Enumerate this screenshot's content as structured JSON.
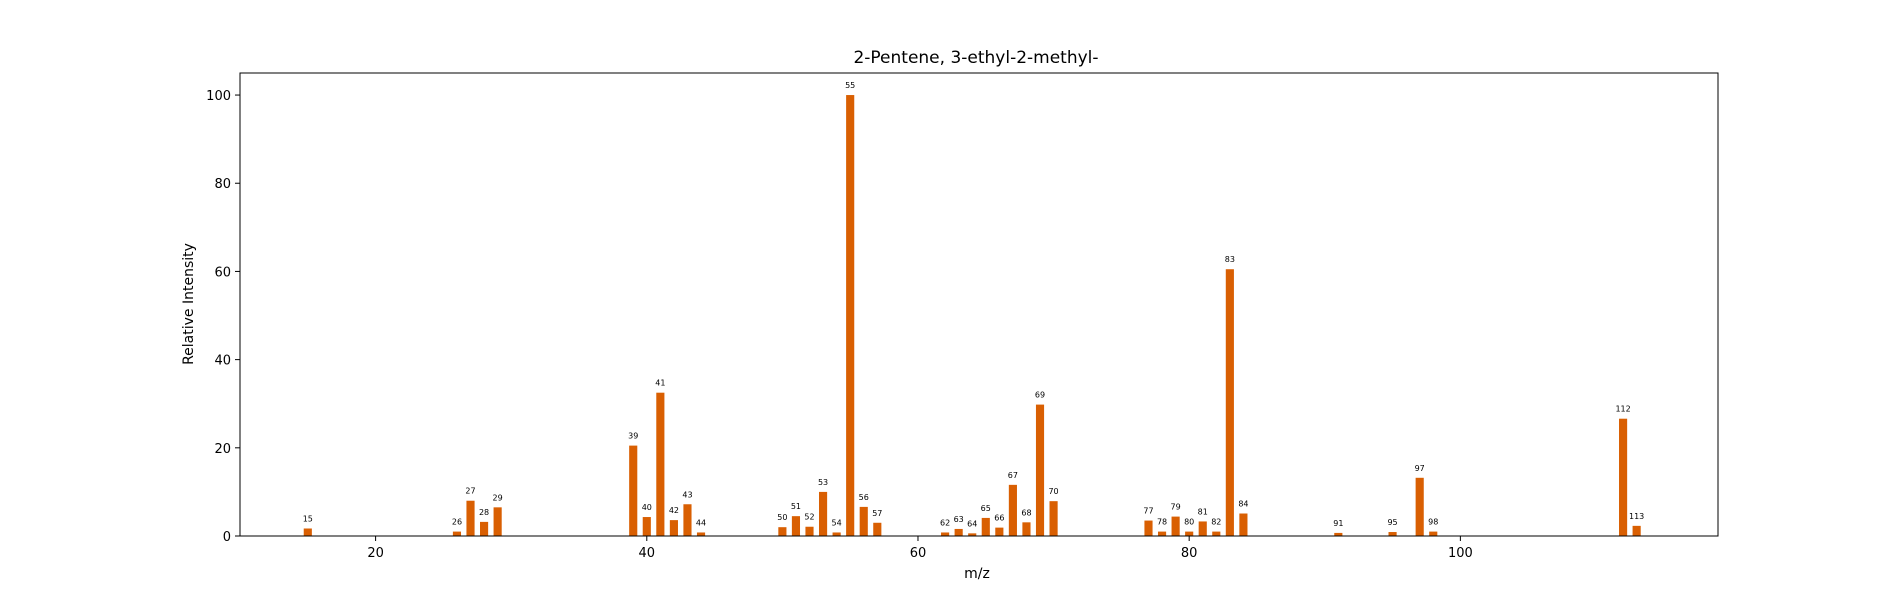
{
  "chart_data": {
    "type": "bar",
    "title": "2-Pentene, 3-ethyl-2-methyl-",
    "xlabel": "m/z",
    "ylabel": "Relative Intensity",
    "xlim": [
      10,
      119
    ],
    "ylim": [
      0,
      105
    ],
    "xticks": [
      20,
      40,
      60,
      80,
      100
    ],
    "yticks": [
      0,
      20,
      40,
      60,
      80,
      100
    ],
    "grid": false,
    "bar_color": "#d95f02",
    "x": [
      15,
      26,
      27,
      28,
      29,
      39,
      40,
      41,
      42,
      43,
      44,
      50,
      51,
      52,
      53,
      54,
      55,
      56,
      57,
      62,
      63,
      64,
      65,
      66,
      67,
      68,
      69,
      70,
      77,
      78,
      79,
      80,
      81,
      82,
      83,
      84,
      91,
      95,
      97,
      98,
      112,
      113
    ],
    "values": [
      1.7,
      1.0,
      8.0,
      3.2,
      6.5,
      20.5,
      4.3,
      32.5,
      3.6,
      7.2,
      0.8,
      2.0,
      4.5,
      2.1,
      10.0,
      0.8,
      100.0,
      6.6,
      3.0,
      0.8,
      1.6,
      0.6,
      4.1,
      1.9,
      11.6,
      3.1,
      29.8,
      7.9,
      3.5,
      1.0,
      4.4,
      1.0,
      3.3,
      1.0,
      60.5,
      5.1,
      0.7,
      0.9,
      13.2,
      1.0,
      26.6,
      2.3
    ],
    "labels": [
      "15",
      "26",
      "27",
      "28",
      "29",
      "39",
      "40",
      "41",
      "42",
      "43",
      "44",
      "50",
      "51",
      "52",
      "53",
      "54",
      "55",
      "56",
      "57",
      "62",
      "63",
      "64",
      "65",
      "66",
      "67",
      "68",
      "69",
      "70",
      "77",
      "78",
      "79",
      "80",
      "81",
      "82",
      "83",
      "84",
      "91",
      "95",
      "97",
      "98",
      "112",
      "113"
    ]
  }
}
